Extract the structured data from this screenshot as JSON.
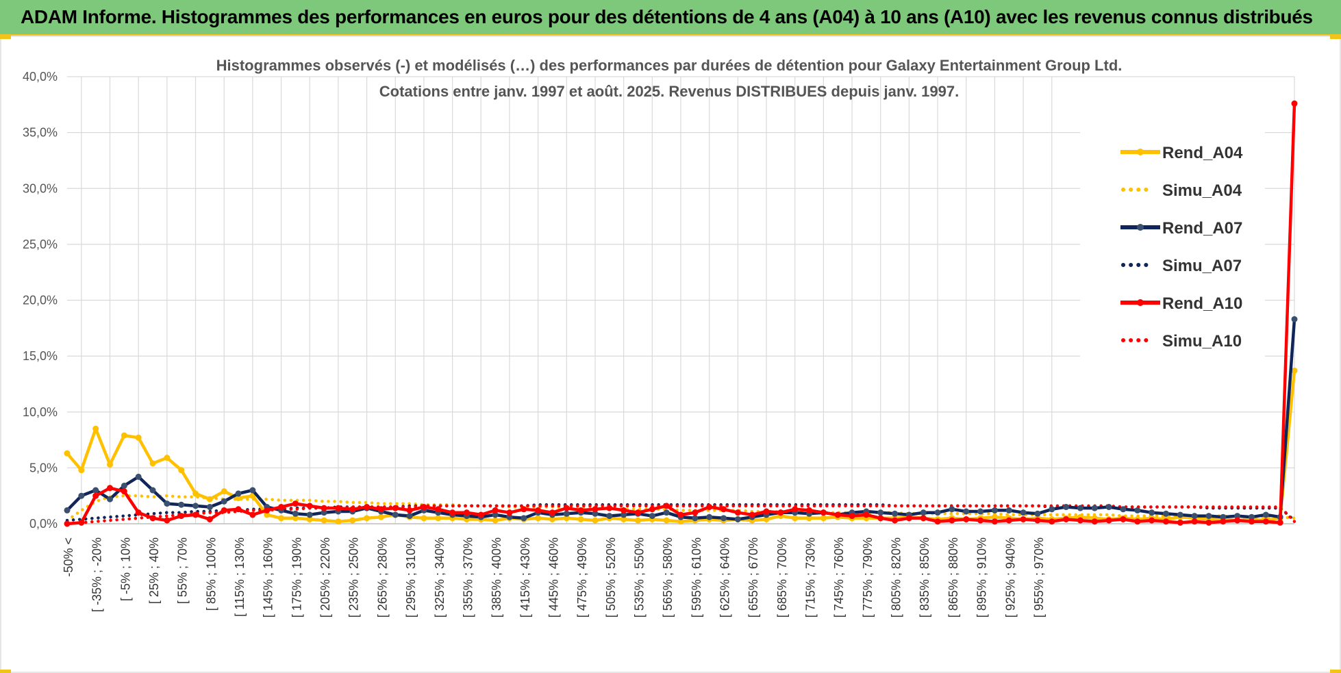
{
  "header": {
    "title": "ADAM Informe. Histogrammes des performances en euros pour des détentions de 4 ans (A04) à 10 ans (A10) avec les revenus connus distribués"
  },
  "colors": {
    "banner": "#7dc87a",
    "accent": "#f0c419",
    "A04": "#FFC000",
    "A07": "#10265A",
    "A10": "#FF0000"
  },
  "chart_data": {
    "type": "line",
    "title_line1": "Histogrammes observés (-) et modélisés (…) des performances par durées de détention pour Galaxy Entertainment Group Ltd.",
    "title_line2": "Cotations entre janv. 1997 et août. 2025. Revenus DISTRIBUES depuis janv. 1997.",
    "ylim": [
      0,
      40
    ],
    "yticks": [
      "0,0%",
      "5,0%",
      "10,0%",
      "15,0%",
      "20,0%",
      "25,0%",
      "30,0%",
      "35,0%",
      "40,0%"
    ],
    "grid": true,
    "legend_position": "right",
    "x_tick_labels": [
      "-50% <",
      "[ -35% ; -20%",
      "[ -5% ; 10%",
      "[ 25% ; 40%",
      "[ 55% ; 70%",
      "[ 85% ; 100%",
      "[ 115% ; 130%",
      "[ 145% ; 160%",
      "[ 175% ; 190%",
      "[ 205% ; 220%",
      "[ 235% ; 250%",
      "[ 265% ; 280%",
      "[ 295% ; 310%",
      "[ 325% ; 340%",
      "[ 355% ; 370%",
      "[ 385% ; 400%",
      "[ 415% ; 430%",
      "[ 445% ; 460%",
      "[ 475% ; 490%",
      "[ 505% ; 520%",
      "[ 535% ; 550%",
      "[ 565% ; 580%",
      "[ 595% ; 610%",
      "[ 625% ; 640%",
      "[ 655% ; 670%",
      "[ 685% ; 700%",
      "[ 715% ; 730%",
      "[ 745% ; 760%",
      "[ 775% ; 790%",
      "[ 805% ; 820%",
      "[ 835% ; 850%",
      "[ 865% ; 880%",
      "[ 895% ; 910%",
      "[ 925% ; 940%",
      "[ 955% ; 970%"
    ],
    "series": [
      {
        "name": "Rend_A04",
        "style": "solid",
        "color": "#FFC000",
        "values": [
          6.3,
          4.8,
          8.5,
          5.3,
          7.9,
          7.7,
          5.4,
          5.9,
          4.8,
          2.7,
          2.2,
          2.9,
          2.3,
          2.5,
          0.8,
          0.5,
          0.5,
          0.4,
          0.3,
          0.2,
          0.3,
          0.5,
          0.6,
          0.8,
          0.6,
          0.5,
          0.5,
          0.5,
          0.4,
          0.4,
          0.3,
          0.5,
          0.4,
          0.5,
          0.4,
          0.5,
          0.4,
          0.3,
          0.5,
          0.4,
          0.3,
          0.4,
          0.3,
          0.2,
          0.3,
          0.4,
          0.3,
          0.4,
          0.3,
          0.4,
          0.7,
          0.5,
          0.5,
          0.5,
          0.6,
          0.5,
          0.5,
          0.5,
          0.5,
          0.6,
          0.5,
          0.4,
          0.5,
          0.4,
          0.5,
          0.6,
          0.5,
          0.4,
          0.5,
          0.4,
          0.5,
          0.6,
          0.5,
          0.4,
          0.5,
          0.4,
          0.5,
          0.4,
          0.6,
          0.5,
          0.4,
          0.4,
          0.3,
          0.4,
          0.3,
          0.5,
          13.7
        ]
      },
      {
        "name": "Simu_A04",
        "style": "dotted",
        "color": "#FFC000",
        "values": [
          0.3,
          1.2,
          2.0,
          2.4,
          2.5,
          2.5,
          2.4,
          2.5,
          2.4,
          2.4,
          2.3,
          2.2,
          2.2,
          2.2,
          2.2,
          2.1,
          2.1,
          2.1,
          2.0,
          2.0,
          1.9,
          1.9,
          1.8,
          1.8,
          1.8,
          1.7,
          1.7,
          1.7,
          1.6,
          1.6,
          1.6,
          1.5,
          1.5,
          1.5,
          1.5,
          1.4,
          1.4,
          1.4,
          1.4,
          1.3,
          1.3,
          1.3,
          1.3,
          1.2,
          1.2,
          1.2,
          1.2,
          1.2,
          1.1,
          1.1,
          1.1,
          1.1,
          1.1,
          1.0,
          1.0,
          1.0,
          1.0,
          1.0,
          1.0,
          0.9,
          0.9,
          0.9,
          0.9,
          0.9,
          0.9,
          0.9,
          0.8,
          0.8,
          0.8,
          0.8,
          0.8,
          0.8,
          0.8,
          0.8,
          0.7,
          0.7,
          0.7,
          0.7,
          0.7,
          0.7,
          0.7,
          0.7,
          0.6,
          0.6,
          0.6,
          0.6,
          0.5
        ]
      },
      {
        "name": "Rend_A07",
        "style": "solid",
        "color": "#10265A",
        "values": [
          1.2,
          2.5,
          3.0,
          2.2,
          3.4,
          4.2,
          3.0,
          1.8,
          1.7,
          1.6,
          1.5,
          2.0,
          2.7,
          3.0,
          1.5,
          1.2,
          0.9,
          0.8,
          1.0,
          1.1,
          1.1,
          1.4,
          1.1,
          0.8,
          0.7,
          1.2,
          1.0,
          0.8,
          0.7,
          0.6,
          0.8,
          0.6,
          0.5,
          1.0,
          0.8,
          0.9,
          1.0,
          0.9,
          0.7,
          0.8,
          0.9,
          0.7,
          1.0,
          0.6,
          0.5,
          0.6,
          0.5,
          0.4,
          0.6,
          0.8,
          1.0,
          1.0,
          0.9,
          1.0,
          0.8,
          1.0,
          1.1,
          1.0,
          0.9,
          0.8,
          1.0,
          1.0,
          1.3,
          1.1,
          1.1,
          1.2,
          1.2,
          1.0,
          0.9,
          1.3,
          1.5,
          1.4,
          1.4,
          1.5,
          1.3,
          1.2,
          1.0,
          0.9,
          0.8,
          0.7,
          0.7,
          0.6,
          0.7,
          0.6,
          0.8,
          0.6,
          18.3
        ]
      },
      {
        "name": "Simu_A07",
        "style": "dotted",
        "color": "#10265A",
        "values": [
          0.3,
          0.4,
          0.5,
          0.6,
          0.7,
          0.8,
          0.9,
          1.0,
          1.0,
          1.1,
          1.1,
          1.2,
          1.2,
          1.3,
          1.3,
          1.3,
          1.4,
          1.4,
          1.4,
          1.5,
          1.5,
          1.5,
          1.5,
          1.5,
          1.6,
          1.6,
          1.6,
          1.6,
          1.6,
          1.6,
          1.6,
          1.6,
          1.6,
          1.7,
          1.7,
          1.7,
          1.7,
          1.7,
          1.7,
          1.7,
          1.7,
          1.7,
          1.7,
          1.7,
          1.7,
          1.7,
          1.7,
          1.7,
          1.7,
          1.7,
          1.7,
          1.7,
          1.7,
          1.7,
          1.7,
          1.7,
          1.7,
          1.7,
          1.6,
          1.6,
          1.6,
          1.6,
          1.6,
          1.6,
          1.6,
          1.6,
          1.6,
          1.6,
          1.6,
          1.5,
          1.5,
          1.5,
          1.5,
          1.5,
          1.5,
          1.5,
          1.5,
          1.5,
          1.5,
          1.5,
          1.4,
          1.4,
          1.4,
          1.4,
          1.4,
          1.4,
          0.3
        ]
      },
      {
        "name": "Rend_A10",
        "style": "solid",
        "color": "#FF0000",
        "values": [
          0.0,
          0.1,
          2.5,
          3.2,
          2.9,
          1.0,
          0.5,
          0.3,
          0.7,
          0.8,
          0.4,
          1.2,
          1.3,
          0.8,
          1.2,
          1.5,
          1.8,
          1.6,
          1.4,
          1.4,
          1.3,
          1.5,
          1.3,
          1.4,
          1.2,
          1.5,
          1.3,
          1.0,
          1.0,
          0.8,
          1.2,
          1.0,
          1.3,
          1.2,
          1.0,
          1.4,
          1.2,
          1.3,
          1.4,
          1.2,
          1.0,
          1.3,
          1.6,
          0.8,
          1.0,
          1.5,
          1.3,
          1.0,
          0.8,
          1.1,
          1.0,
          1.3,
          1.2,
          1.0,
          0.8,
          0.7,
          0.8,
          0.5,
          0.3,
          0.5,
          0.5,
          0.2,
          0.3,
          0.4,
          0.3,
          0.2,
          0.3,
          0.4,
          0.3,
          0.2,
          0.4,
          0.3,
          0.2,
          0.3,
          0.4,
          0.2,
          0.3,
          0.2,
          0.1,
          0.2,
          0.1,
          0.2,
          0.3,
          0.2,
          0.2,
          0.1,
          37.6
        ]
      },
      {
        "name": "Simu_A10",
        "style": "dotted",
        "color": "#FF0000",
        "values": [
          0.0,
          0.1,
          0.2,
          0.3,
          0.4,
          0.5,
          0.6,
          0.7,
          0.8,
          0.9,
          1.0,
          1.0,
          1.1,
          1.2,
          1.2,
          1.3,
          1.3,
          1.4,
          1.4,
          1.4,
          1.5,
          1.5,
          1.5,
          1.5,
          1.5,
          1.6,
          1.6,
          1.6,
          1.6,
          1.6,
          1.6,
          1.6,
          1.6,
          1.6,
          1.6,
          1.6,
          1.6,
          1.6,
          1.6,
          1.6,
          1.6,
          1.6,
          1.6,
          1.6,
          1.6,
          1.6,
          1.6,
          1.6,
          1.6,
          1.6,
          1.6,
          1.6,
          1.6,
          1.6,
          1.6,
          1.6,
          1.6,
          1.6,
          1.6,
          1.6,
          1.6,
          1.6,
          1.6,
          1.6,
          1.6,
          1.6,
          1.6,
          1.6,
          1.6,
          1.6,
          1.6,
          1.6,
          1.6,
          1.6,
          1.5,
          1.5,
          1.5,
          1.5,
          1.5,
          1.5,
          1.5,
          1.5,
          1.5,
          1.5,
          1.5,
          1.5,
          0.2
        ]
      }
    ]
  }
}
